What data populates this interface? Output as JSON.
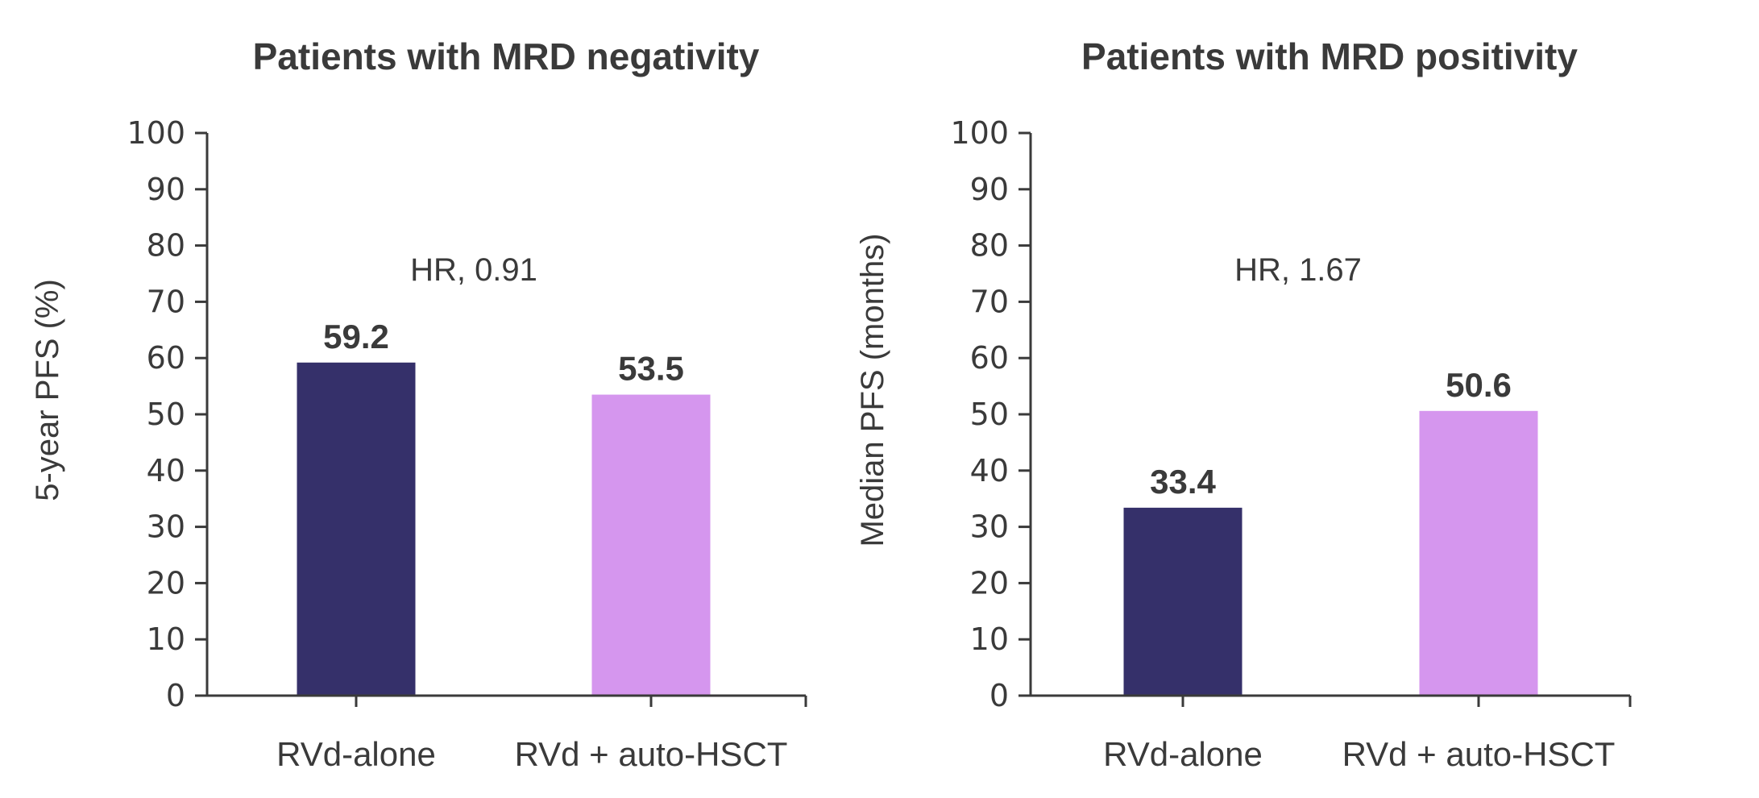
{
  "chart_data": [
    {
      "type": "bar",
      "title": "Patients with MRD negativity",
      "xlabel": "",
      "ylabel": "5-year PFS (%)",
      "ylim": [
        0,
        100
      ],
      "yticks": [
        0,
        10,
        20,
        30,
        40,
        50,
        60,
        70,
        80,
        90,
        100
      ],
      "categories": [
        "RVd-alone",
        "RVd + auto-HSCT"
      ],
      "values": [
        59.2,
        53.5
      ],
      "value_labels": [
        "59.2",
        "53.5"
      ],
      "colors": [
        "#35306a",
        "#d596ee"
      ],
      "annotation": "HR, 0.91",
      "grid": false
    },
    {
      "type": "bar",
      "title": "Patients with MRD positivity",
      "xlabel": "",
      "ylabel": "Median PFS (months)",
      "ylim": [
        0,
        100
      ],
      "yticks": [
        0,
        10,
        20,
        30,
        40,
        50,
        60,
        70,
        80,
        90,
        100
      ],
      "categories": [
        "RVd-alone",
        "RVd + auto-HSCT"
      ],
      "values": [
        33.4,
        50.6
      ],
      "value_labels": [
        "33.4",
        "50.6"
      ],
      "colors": [
        "#35306a",
        "#d596ee"
      ],
      "annotation": "HR, 1.67",
      "grid": false
    }
  ]
}
